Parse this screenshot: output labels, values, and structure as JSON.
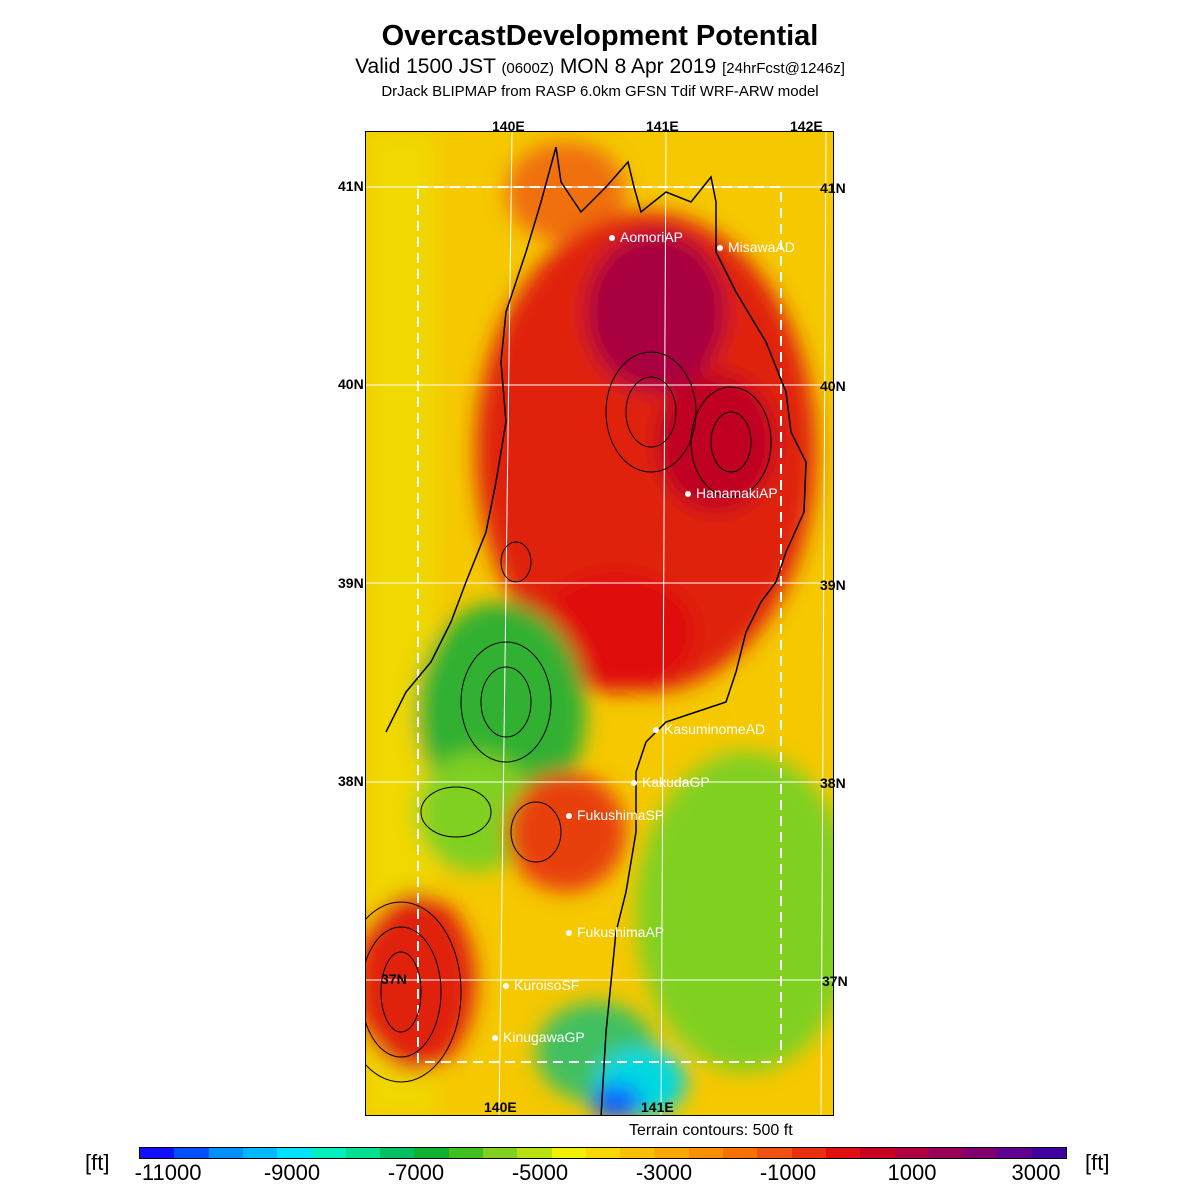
{
  "header": {
    "title": "OvercastDevelopment Potential",
    "subtitle_main_1": "Valid 1500 JST",
    "subtitle_small_1": "(0600Z)",
    "subtitle_main_2": "MON 8 Apr 2019",
    "subtitle_small_2": "[24hrFcst@1246z]",
    "source": "DrJack BLIPMAP from RASP 6.0km GFSN Tdif WRF-ARW model"
  },
  "map": {
    "lon_labels_top": [
      "140E",
      "141E",
      "142E"
    ],
    "lon_labels_bottom": [
      "140E",
      "141E"
    ],
    "lat_labels": [
      "41N",
      "40N",
      "39N",
      "38N",
      "37N"
    ],
    "stations": [
      "AomoriAP",
      "MisawaAD",
      "HanamakiAP",
      "KasuminomeAD",
      "KakudaGP",
      "FukushimaSP",
      "FukushimaAP",
      "KuroisoSF",
      "KinugawaGP"
    ],
    "terrain_note": "Terrain contours: 500 ft"
  },
  "colorbar": {
    "unit_label": "[ft]",
    "tick_labels": [
      "-11000",
      "-9000",
      "-7000",
      "-5000",
      "-3000",
      "-1000",
      "1000",
      "3000"
    ],
    "colors": [
      "#1010ff",
      "#0050ff",
      "#0090ff",
      "#00b8ff",
      "#00e0ff",
      "#00f0c0",
      "#00e090",
      "#00c060",
      "#10b030",
      "#40c020",
      "#80d020",
      "#b8e010",
      "#f0f000",
      "#f8d800",
      "#f8c000",
      "#f8a800",
      "#f89000",
      "#f87000",
      "#f05010",
      "#e83010",
      "#e01010",
      "#c80020",
      "#b00040",
      "#980058",
      "#800070",
      "#600090",
      "#4000a0"
    ]
  }
}
